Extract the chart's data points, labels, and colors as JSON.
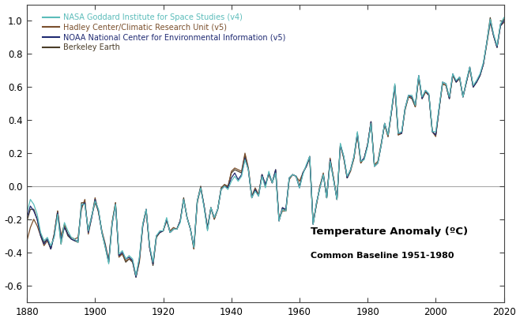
{
  "title": "Temperature Anomaly (ºC)",
  "subtitle": "Common Baseline 1951-1980",
  "xlim": [
    1880,
    2020
  ],
  "ylim": [
    -0.7,
    1.1
  ],
  "yticks": [
    -0.6,
    -0.4,
    -0.2,
    0.0,
    0.2,
    0.4,
    0.6,
    0.8,
    1.0
  ],
  "xticks": [
    1880,
    1900,
    1920,
    1940,
    1960,
    1980,
    2000,
    2020
  ],
  "zero_line_color": "#aaaaaa",
  "background_color": "#ffffff",
  "legend_entries": [
    "NASA Goddard Institute for Space Studies (v4)",
    "Hadley Center/Climatic Research Unit (v5)",
    "NOAA National Center for Environmental Information (v5)",
    "Berkeley Earth"
  ],
  "line_colors": [
    "#5bbcba",
    "#7a4f2c",
    "#1f2a72",
    "#4a3d28"
  ],
  "years": [
    1880,
    1881,
    1882,
    1883,
    1884,
    1885,
    1886,
    1887,
    1888,
    1889,
    1890,
    1891,
    1892,
    1893,
    1894,
    1895,
    1896,
    1897,
    1898,
    1899,
    1900,
    1901,
    1902,
    1903,
    1904,
    1905,
    1906,
    1907,
    1908,
    1909,
    1910,
    1911,
    1912,
    1913,
    1914,
    1915,
    1916,
    1917,
    1918,
    1919,
    1920,
    1921,
    1922,
    1923,
    1924,
    1925,
    1926,
    1927,
    1928,
    1929,
    1930,
    1931,
    1932,
    1933,
    1934,
    1935,
    1936,
    1937,
    1938,
    1939,
    1940,
    1941,
    1942,
    1943,
    1944,
    1945,
    1946,
    1947,
    1948,
    1949,
    1950,
    1951,
    1952,
    1953,
    1954,
    1955,
    1956,
    1957,
    1958,
    1959,
    1960,
    1961,
    1962,
    1963,
    1964,
    1965,
    1966,
    1967,
    1968,
    1969,
    1970,
    1971,
    1972,
    1973,
    1974,
    1975,
    1976,
    1977,
    1978,
    1979,
    1980,
    1981,
    1982,
    1983,
    1984,
    1985,
    1986,
    1987,
    1988,
    1989,
    1990,
    1991,
    1992,
    1993,
    1994,
    1995,
    1996,
    1997,
    1998,
    1999,
    2000,
    2001,
    2002,
    2003,
    2004,
    2005,
    2006,
    2007,
    2008,
    2009,
    2010,
    2011,
    2012,
    2013,
    2014,
    2015,
    2016,
    2017,
    2018,
    2019,
    2020
  ],
  "nasa_giss": [
    -0.16,
    -0.08,
    -0.11,
    -0.17,
    -0.28,
    -0.33,
    -0.31,
    -0.36,
    -0.31,
    -0.17,
    -0.35,
    -0.22,
    -0.27,
    -0.31,
    -0.32,
    -0.34,
    -0.11,
    -0.11,
    -0.27,
    -0.18,
    -0.09,
    -0.14,
    -0.28,
    -0.37,
    -0.47,
    -0.23,
    -0.11,
    -0.41,
    -0.39,
    -0.44,
    -0.42,
    -0.44,
    -0.54,
    -0.43,
    -0.23,
    -0.14,
    -0.36,
    -0.46,
    -0.3,
    -0.27,
    -0.27,
    -0.19,
    -0.28,
    -0.26,
    -0.26,
    -0.22,
    -0.08,
    -0.19,
    -0.26,
    -0.37,
    -0.09,
    -0.01,
    -0.13,
    -0.27,
    -0.13,
    -0.19,
    -0.14,
    -0.02,
    -0.0,
    -0.02,
    0.03,
    0.06,
    0.03,
    0.06,
    0.16,
    0.1,
    -0.07,
    -0.03,
    -0.06,
    0.06,
    -0.01,
    0.09,
    0.02,
    0.08,
    -0.21,
    -0.14,
    -0.15,
    0.05,
    0.07,
    0.06,
    -0.01,
    0.07,
    0.13,
    0.18,
    -0.23,
    -0.1,
    -0.01,
    0.07,
    -0.07,
    0.15,
    0.04,
    -0.08,
    0.26,
    0.18,
    0.06,
    0.1,
    0.18,
    0.33,
    0.15,
    0.16,
    0.24,
    0.38,
    0.12,
    0.14,
    0.25,
    0.38,
    0.31,
    0.46,
    0.62,
    0.32,
    0.33,
    0.47,
    0.55,
    0.55,
    0.49,
    0.67,
    0.54,
    0.58,
    0.56,
    0.33,
    0.33,
    0.48,
    0.63,
    0.62,
    0.54,
    0.68,
    0.64,
    0.66,
    0.54,
    0.64,
    0.72,
    0.61,
    0.64,
    0.68,
    0.75,
    0.87,
    1.01,
    0.92,
    0.85,
    0.98,
    1.02
  ],
  "hadley": [
    -0.33,
    -0.25,
    -0.2,
    -0.24,
    -0.3,
    -0.36,
    -0.33,
    -0.38,
    -0.29,
    -0.15,
    -0.3,
    -0.23,
    -0.29,
    -0.31,
    -0.32,
    -0.31,
    -0.14,
    -0.08,
    -0.29,
    -0.19,
    -0.07,
    -0.16,
    -0.27,
    -0.35,
    -0.45,
    -0.22,
    -0.1,
    -0.43,
    -0.41,
    -0.45,
    -0.44,
    -0.45,
    -0.55,
    -0.46,
    -0.24,
    -0.15,
    -0.37,
    -0.47,
    -0.3,
    -0.28,
    -0.27,
    -0.21,
    -0.27,
    -0.25,
    -0.26,
    -0.21,
    -0.08,
    -0.19,
    -0.26,
    -0.38,
    -0.1,
    -0.01,
    -0.12,
    -0.26,
    -0.13,
    -0.2,
    -0.14,
    -0.02,
    0.01,
    -0.01,
    0.09,
    0.11,
    0.1,
    0.09,
    0.2,
    0.11,
    -0.06,
    -0.01,
    -0.05,
    0.07,
    0.01,
    0.07,
    0.02,
    0.1,
    -0.2,
    -0.15,
    -0.15,
    0.04,
    0.07,
    0.06,
    0.03,
    0.08,
    0.12,
    0.18,
    -0.22,
    -0.11,
    0.0,
    0.08,
    -0.07,
    0.17,
    0.05,
    -0.08,
    0.25,
    0.17,
    0.05,
    0.09,
    0.17,
    0.31,
    0.14,
    0.17,
    0.25,
    0.39,
    0.13,
    0.15,
    0.26,
    0.37,
    0.3,
    0.45,
    0.6,
    0.31,
    0.32,
    0.46,
    0.54,
    0.54,
    0.48,
    0.66,
    0.53,
    0.57,
    0.55,
    0.33,
    0.3,
    0.47,
    0.62,
    0.61,
    0.53,
    0.67,
    0.63,
    0.65,
    0.54,
    0.63,
    0.71,
    0.6,
    0.63,
    0.67,
    0.74,
    0.86,
    0.99,
    0.91,
    0.84,
    0.97,
    0.99
  ],
  "noaa": [
    -0.19,
    -0.12,
    -0.15,
    -0.2,
    -0.3,
    -0.35,
    -0.32,
    -0.38,
    -0.3,
    -0.16,
    -0.32,
    -0.25,
    -0.29,
    -0.32,
    -0.33,
    -0.33,
    -0.12,
    -0.1,
    -0.28,
    -0.19,
    -0.08,
    -0.15,
    -0.28,
    -0.36,
    -0.46,
    -0.23,
    -0.11,
    -0.42,
    -0.4,
    -0.44,
    -0.43,
    -0.45,
    -0.55,
    -0.44,
    -0.24,
    -0.14,
    -0.37,
    -0.47,
    -0.3,
    -0.28,
    -0.27,
    -0.2,
    -0.28,
    -0.26,
    -0.26,
    -0.21,
    -0.08,
    -0.19,
    -0.26,
    -0.37,
    -0.09,
    -0.01,
    -0.12,
    -0.26,
    -0.13,
    -0.19,
    -0.14,
    -0.02,
    0.0,
    -0.01,
    0.05,
    0.08,
    0.04,
    0.07,
    0.17,
    0.1,
    -0.07,
    -0.02,
    -0.06,
    0.07,
    0.01,
    0.08,
    0.02,
    0.1,
    -0.21,
    -0.13,
    -0.14,
    0.05,
    0.07,
    0.06,
    -0.01,
    0.08,
    0.12,
    0.18,
    -0.23,
    -0.1,
    -0.01,
    0.07,
    -0.07,
    0.16,
    0.04,
    -0.08,
    0.25,
    0.18,
    0.05,
    0.1,
    0.18,
    0.32,
    0.15,
    0.17,
    0.25,
    0.39,
    0.12,
    0.14,
    0.25,
    0.38,
    0.31,
    0.45,
    0.61,
    0.32,
    0.32,
    0.47,
    0.55,
    0.54,
    0.49,
    0.67,
    0.53,
    0.58,
    0.55,
    0.33,
    0.31,
    0.47,
    0.63,
    0.62,
    0.53,
    0.68,
    0.63,
    0.66,
    0.54,
    0.63,
    0.72,
    0.6,
    0.63,
    0.67,
    0.74,
    0.87,
    1.0,
    0.91,
    0.84,
    0.97,
    1.0
  ],
  "berkeley": [
    -0.21,
    -0.14,
    -0.14,
    -0.2,
    -0.29,
    -0.34,
    -0.32,
    -0.38,
    -0.29,
    -0.15,
    -0.35,
    -0.24,
    -0.3,
    -0.32,
    -0.33,
    -0.34,
    -0.1,
    -0.1,
    -0.27,
    -0.18,
    -0.1,
    -0.15,
    -0.28,
    -0.37,
    -0.46,
    -0.22,
    -0.1,
    -0.42,
    -0.41,
    -0.46,
    -0.44,
    -0.46,
    -0.55,
    -0.45,
    -0.23,
    -0.14,
    -0.37,
    -0.48,
    -0.31,
    -0.28,
    -0.27,
    -0.2,
    -0.28,
    -0.26,
    -0.26,
    -0.21,
    -0.07,
    -0.19,
    -0.26,
    -0.38,
    -0.09,
    -0.0,
    -0.12,
    -0.25,
    -0.13,
    -0.2,
    -0.14,
    -0.01,
    0.01,
    0.0,
    0.08,
    0.1,
    0.09,
    0.08,
    0.19,
    0.1,
    -0.07,
    -0.02,
    -0.05,
    0.07,
    0.0,
    0.08,
    0.02,
    0.09,
    -0.21,
    -0.13,
    -0.15,
    0.05,
    0.07,
    0.06,
    0.0,
    0.08,
    0.12,
    0.17,
    -0.23,
    -0.11,
    0.0,
    0.07,
    -0.07,
    0.16,
    0.05,
    -0.08,
    0.25,
    0.17,
    0.05,
    0.1,
    0.17,
    0.32,
    0.14,
    0.17,
    0.25,
    0.39,
    0.12,
    0.14,
    0.25,
    0.38,
    0.3,
    0.45,
    0.61,
    0.31,
    0.32,
    0.47,
    0.54,
    0.53,
    0.48,
    0.66,
    0.53,
    0.57,
    0.55,
    0.33,
    0.31,
    0.47,
    0.62,
    0.61,
    0.53,
    0.67,
    0.63,
    0.66,
    0.54,
    0.63,
    0.72,
    0.6,
    0.63,
    0.67,
    0.74,
    0.87,
    1.02,
    0.91,
    0.84,
    0.98,
    1.01
  ]
}
